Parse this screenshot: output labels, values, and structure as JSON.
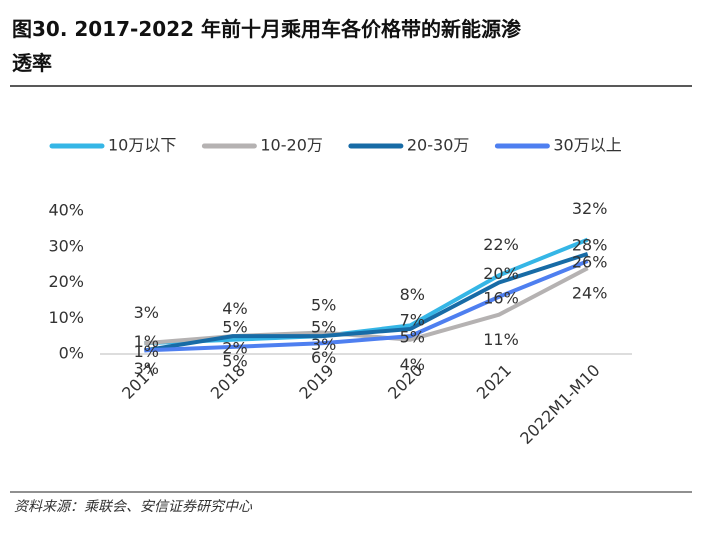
{
  "chart_data": {
    "type": "line",
    "title": "图30. 2017-2022 年前十月乘用车各价格带的新能源渗透率",
    "source": "资料来源：乘联会、安信证券研究中心",
    "categories": [
      "2017",
      "2018",
      "2019",
      "2020",
      "2021",
      "2022M1-M10"
    ],
    "series": [
      {
        "name": "10万以下",
        "color": "#35b6e6",
        "values": [
          3,
          4,
          5,
          8,
          22,
          32
        ],
        "value_labels": [
          "3%",
          "4%",
          "5%",
          "8%",
          "22%",
          "32%"
        ]
      },
      {
        "name": "10-20万",
        "color": "#b5b2b2",
        "values": [
          3,
          5,
          6,
          4,
          11,
          24
        ],
        "value_labels": [
          "3%",
          "5%",
          "6%",
          "4%",
          "11%",
          "24%"
        ]
      },
      {
        "name": "20-30万",
        "color": "#176ba6",
        "values": [
          1,
          5,
          5,
          7,
          20,
          28
        ],
        "value_labels": [
          "1%",
          "5%",
          "5%",
          "7%",
          "20%",
          "28%"
        ]
      },
      {
        "name": "30万以上",
        "color": "#4e7ff0",
        "values": [
          1,
          2,
          3,
          5,
          16,
          26
        ],
        "value_labels": [
          "1%",
          "2%",
          "3%",
          "5%",
          "16%",
          "26%"
        ]
      }
    ],
    "ylim": [
      0,
      40
    ],
    "yticks": [
      {
        "value": 0,
        "label": "0%"
      },
      {
        "value": 10,
        "label": "10%"
      },
      {
        "value": 20,
        "label": "20%"
      },
      {
        "value": 30,
        "label": "30%"
      },
      {
        "value": 40,
        "label": "40%"
      }
    ],
    "legend": "top"
  }
}
